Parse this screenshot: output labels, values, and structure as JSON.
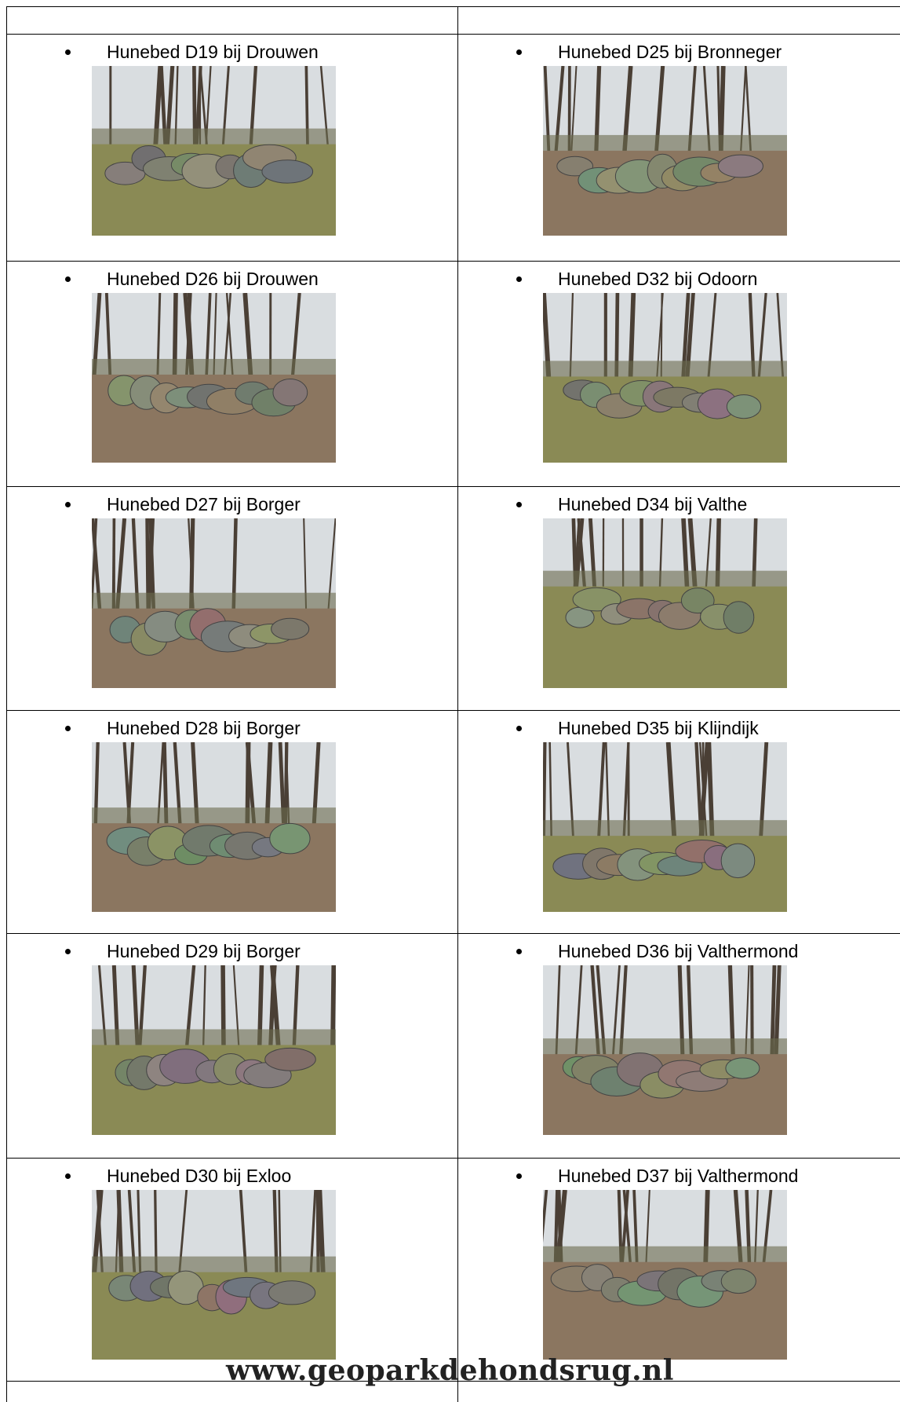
{
  "table": {
    "rows": [
      [
        "Hunebed D19 bij Drouwen",
        "Hunebed D25 bij Bronneger"
      ],
      [
        "Hunebed D26 bij Drouwen",
        "Hunebed D32 bij Odoorn"
      ],
      [
        "Hunebed D27 bij Borger",
        "Hunebed D34 bij Valthe"
      ],
      [
        "Hunebed D28 bij Borger",
        "Hunebed D35 bij Klijndijk"
      ],
      [
        "Hunebed D29 bij Borger",
        "Hunebed D36 bij Valthermond"
      ],
      [
        "Hunebed D30 bij Exloo",
        "Hunebed D37 bij Valthermond"
      ]
    ]
  },
  "watermark": "www.geoparkdehondsrug.nl"
}
